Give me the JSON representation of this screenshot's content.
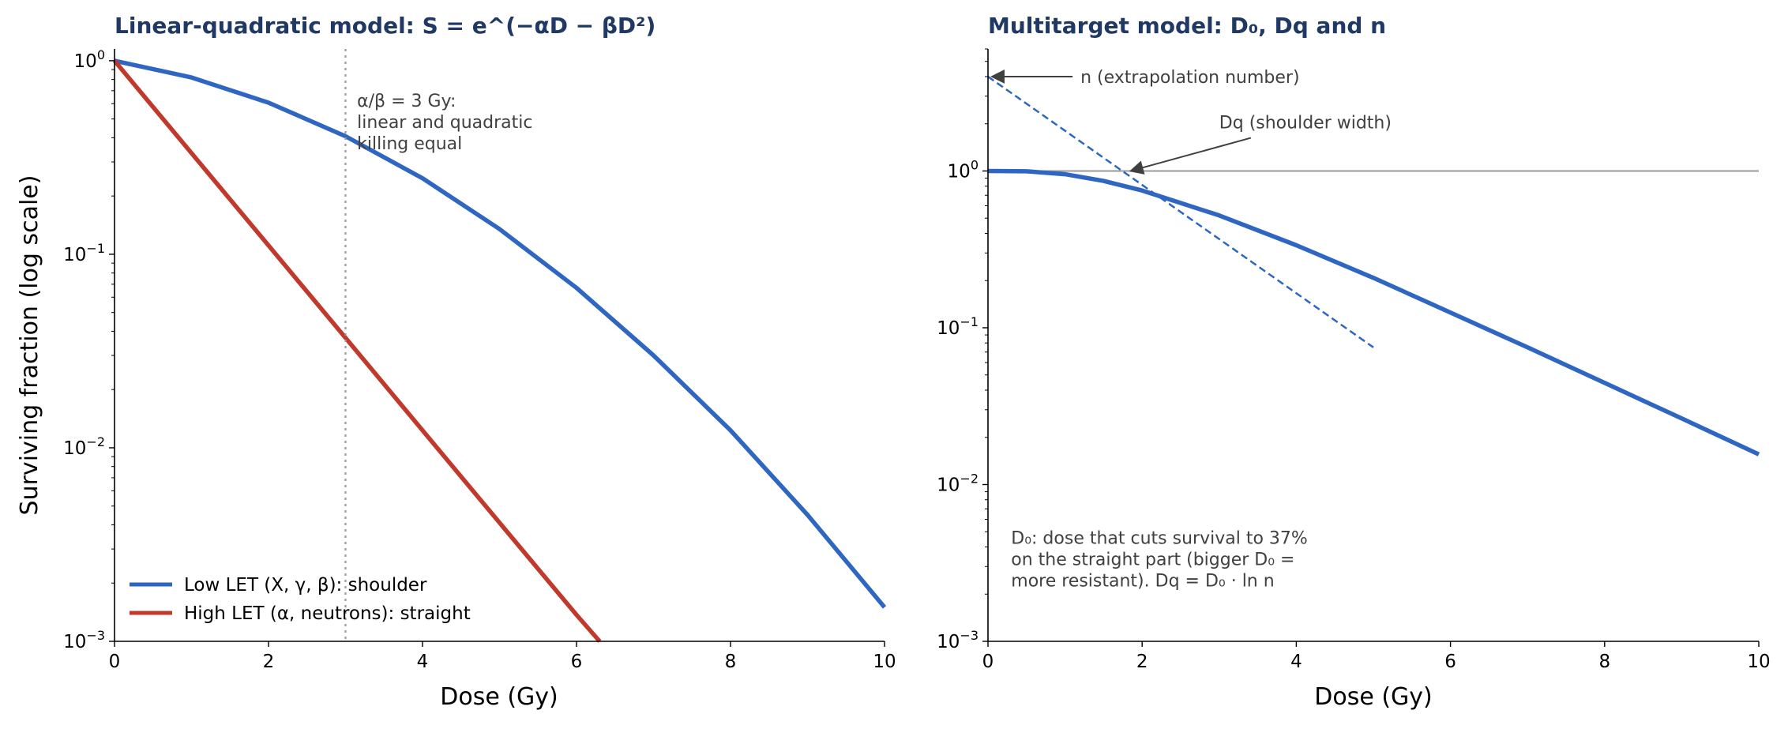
{
  "colors": {
    "low_let": "#2e66c2",
    "high_let": "#c0392b",
    "title": "#1f3864",
    "annotation": "#404040",
    "reference": "#999999"
  },
  "chart_data": [
    {
      "type": "line",
      "title": "Linear-quadratic model:  S = e^(−αD − βD²)",
      "xlabel": "Dose (Gy)",
      "ylabel": "Surviving fraction (log scale)",
      "xlim": [
        0,
        10
      ],
      "ylim": [
        0.001,
        1.15
      ],
      "yscale": "log",
      "xticks": [
        0,
        2,
        4,
        6,
        8,
        10
      ],
      "yticks": [
        {
          "value": 1,
          "exp": "0"
        },
        {
          "value": 0.1,
          "exp": "−1"
        },
        {
          "value": 0.01,
          "exp": "−2"
        },
        {
          "value": 0.001,
          "exp": "−3"
        }
      ],
      "grid": false,
      "legend_position": "lower-left",
      "series": [
        {
          "name": "Low LET (X, γ, β): shoulder",
          "color": "#2e66c2",
          "x": [
            0,
            1,
            2,
            3,
            4,
            5,
            6,
            7,
            8,
            9,
            10
          ],
          "y": [
            1.0,
            0.819,
            0.607,
            0.407,
            0.247,
            0.135,
            0.067,
            0.03,
            0.0123,
            0.0045,
            0.0015
          ]
        },
        {
          "name": "High LET (α, neutrons): straight",
          "color": "#c0392b",
          "x": [
            0,
            1,
            2,
            3,
            4,
            5,
            6,
            6.3
          ],
          "y": [
            1.0,
            0.333,
            0.111,
            0.037,
            0.0123,
            0.0041,
            0.00137,
            0.001
          ]
        }
      ],
      "reference_line": {
        "x": 3
      },
      "annotation": {
        "x": 3.15,
        "y": 0.58,
        "lines": [
          "α/β = 3 Gy:",
          "linear and quadratic",
          "killing equal"
        ]
      }
    },
    {
      "type": "line",
      "title": "Multitarget model: D₀, Dq and n",
      "xlabel": "Dose (Gy)",
      "ylabel": "",
      "xlim": [
        0,
        10
      ],
      "ylim": [
        0.001,
        6.0
      ],
      "yscale": "log",
      "xticks": [
        0,
        2,
        4,
        6,
        8,
        10
      ],
      "yticks": [
        {
          "value": 1,
          "exp": "0"
        },
        {
          "value": 0.1,
          "exp": "−1"
        },
        {
          "value": 0.01,
          "exp": "−2"
        },
        {
          "value": 0.001,
          "exp": "−3"
        }
      ],
      "grid": false,
      "series": [
        {
          "name": "",
          "color": "#2e66c2",
          "x": [
            0,
            0.5,
            1,
            1.5,
            2,
            3,
            4,
            5,
            6,
            7,
            8,
            9,
            10
          ],
          "y": [
            1.0,
            0.995,
            0.953,
            0.864,
            0.751,
            0.52,
            0.336,
            0.208,
            0.125,
            0.075,
            0.0445,
            0.0264,
            0.0156
          ]
        }
      ],
      "extrapolation_line": {
        "x": [
          0,
          5.0
        ],
        "y": [
          4.0,
          0.075
        ]
      },
      "reference_line": {
        "y": 1
      },
      "annotations": [
        {
          "text": "n (extrapolation number)",
          "text_x": 1.2,
          "text_y": 4.0,
          "arrow_x": 0.05,
          "arrow_y": 4.0
        },
        {
          "text": "Dq (shoulder width)",
          "text_x": 3.0,
          "text_y": 2.05,
          "arrow_x": 1.85,
          "arrow_y": 1.0
        }
      ],
      "note": {
        "x": 0.3,
        "y": 0.0042,
        "lines": [
          "D₀: dose that cuts survival to 37%",
          "on the straight part (bigger D₀ =",
          "more resistant).  Dq = D₀ · ln n"
        ]
      }
    }
  ]
}
